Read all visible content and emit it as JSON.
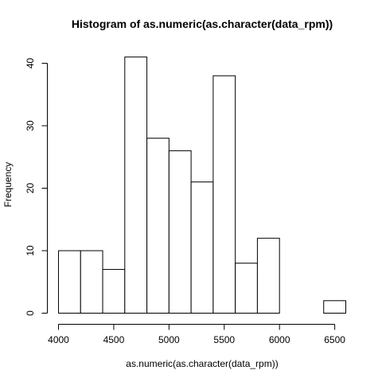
{
  "chart_data": {
    "type": "bar",
    "title": "Histogram of as.numeric(as.character(data_rpm))",
    "xlabel": "as.numeric(as.character(data_rpm))",
    "ylabel": "Frequency",
    "bins": [
      {
        "start": 4000,
        "end": 4200,
        "count": 10
      },
      {
        "start": 4200,
        "end": 4400,
        "count": 10
      },
      {
        "start": 4400,
        "end": 4600,
        "count": 7
      },
      {
        "start": 4600,
        "end": 4800,
        "count": 41
      },
      {
        "start": 4800,
        "end": 5000,
        "count": 28
      },
      {
        "start": 5000,
        "end": 5200,
        "count": 26
      },
      {
        "start": 5200,
        "end": 5400,
        "count": 21
      },
      {
        "start": 5400,
        "end": 5600,
        "count": 38
      },
      {
        "start": 5600,
        "end": 5800,
        "count": 8
      },
      {
        "start": 5800,
        "end": 6000,
        "count": 12
      },
      {
        "start": 6000,
        "end": 6200,
        "count": 0
      },
      {
        "start": 6200,
        "end": 6400,
        "count": 0
      },
      {
        "start": 6400,
        "end": 6600,
        "count": 2
      }
    ],
    "xlim": [
      4000,
      6600
    ],
    "ylim": [
      0,
      41
    ],
    "x_ticks": [
      "4000",
      "4500",
      "5000",
      "5500",
      "6000",
      "6500"
    ],
    "y_ticks": [
      "0",
      "10",
      "20",
      "30",
      "40"
    ],
    "grid": false,
    "legend": "none"
  }
}
